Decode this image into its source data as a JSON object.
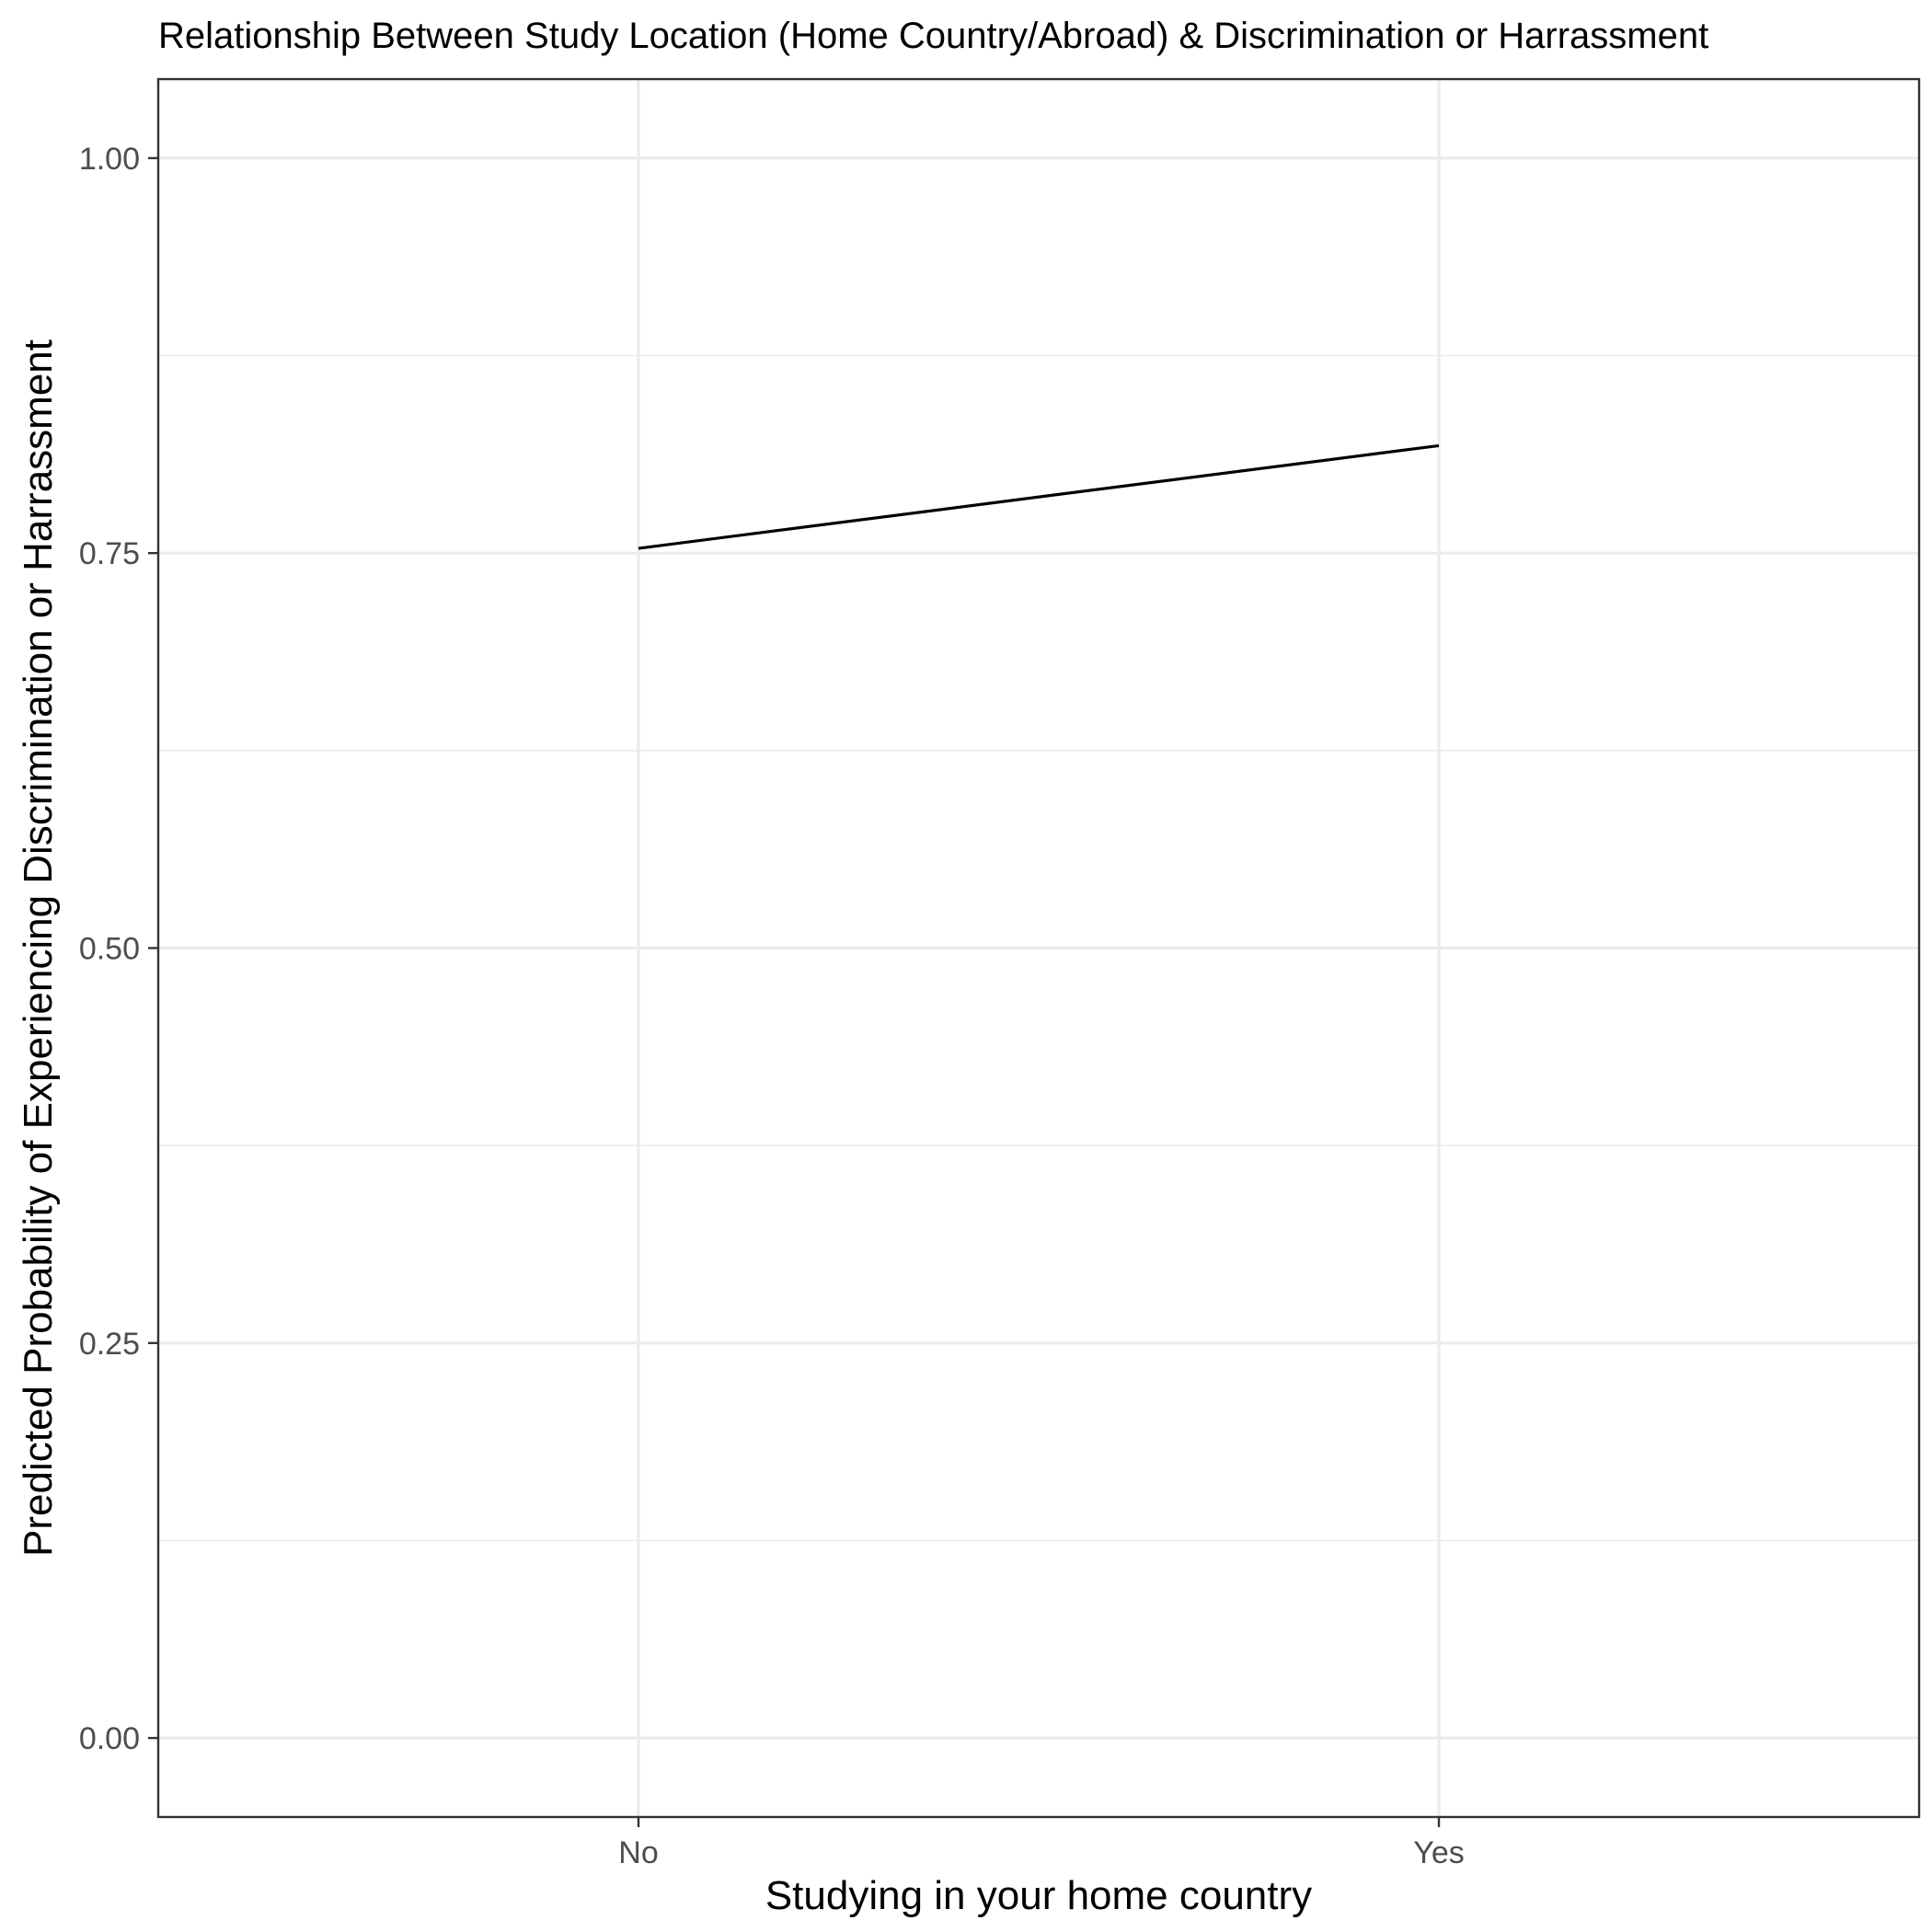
{
  "chart_data": {
    "type": "line",
    "title": "Relationship Between Study Location (Home Country/Abroad) & Discrimination or Harrassment",
    "xlabel": "Studying in your home country",
    "ylabel": "Predicted Probability of Experiencing Discrimination or Harrassment",
    "categories": [
      "No",
      "Yes"
    ],
    "series": [
      {
        "values": [
          0.753,
          0.818
        ]
      }
    ],
    "ylim": [
      -0.05,
      1.05
    ],
    "yticks": [
      0.0,
      0.25,
      0.5,
      0.75,
      1.0
    ],
    "ytick_labels": [
      "0.00",
      "0.25",
      "0.50",
      "0.75",
      "1.00"
    ],
    "yminor": [
      0.125,
      0.375,
      0.625,
      0.875
    ],
    "grid": true,
    "legend": "none",
    "colors": {
      "line": "#000000",
      "grid": "#ebebeb",
      "border": "#333333",
      "tick_text": "#4d4d4d"
    }
  }
}
